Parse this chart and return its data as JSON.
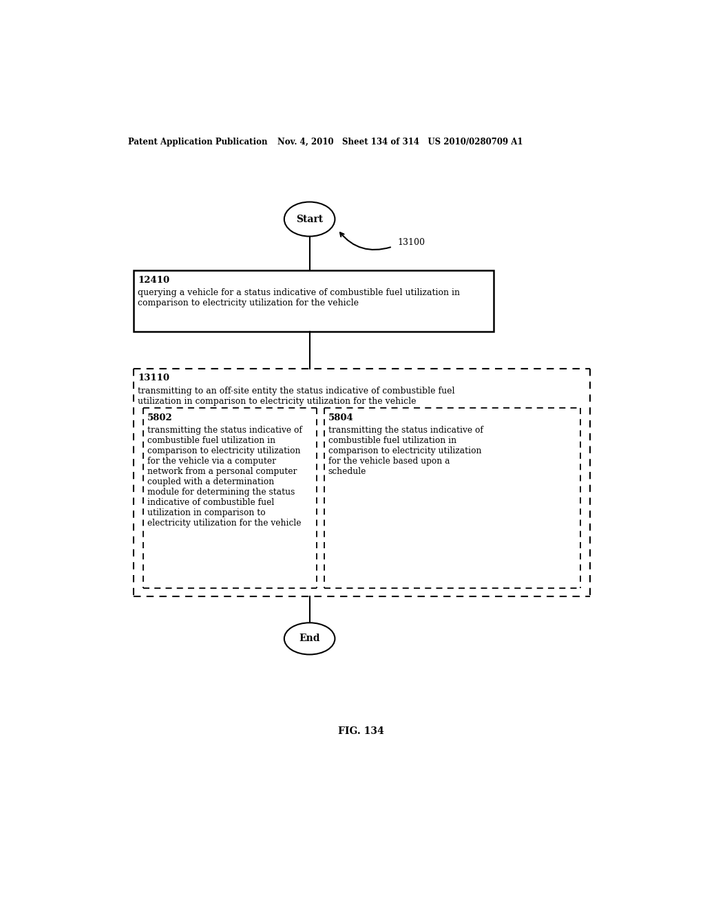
{
  "bg_color": "#ffffff",
  "header_left": "Patent Application Publication",
  "header_mid": "Nov. 4, 2010   Sheet 134 of 314   US 2010/0280709 A1",
  "figure_label": "FIG. 134",
  "ref_label": "13100",
  "start_label": "Start",
  "end_label": "End",
  "box1_id": "12410",
  "box1_text": "querying a vehicle for a status indicative of combustible fuel utilization in\ncomparison to electricity utilization for the vehicle",
  "box2_id": "13110",
  "box2_text": "transmitting to an off-site entity the status indicative of combustible fuel\nutilization in comparison to electricity utilization for the vehicle",
  "box3_id": "5802",
  "box3_text": "transmitting the status indicative of\ncombustible fuel utilization in\ncomparison to electricity utilization\nfor the vehicle via a computer\nnetwork from a personal computer\ncoupled with a determination\nmodule for determining the status\nindicative of combustible fuel\nutilization in comparison to\nelectricity utilization for the vehicle",
  "box4_id": "5804",
  "box4_text": "transmitting the status indicative of\ncombustible fuel utilization in\ncomparison to electricity utilization\nfor the vehicle based upon a\nschedule"
}
